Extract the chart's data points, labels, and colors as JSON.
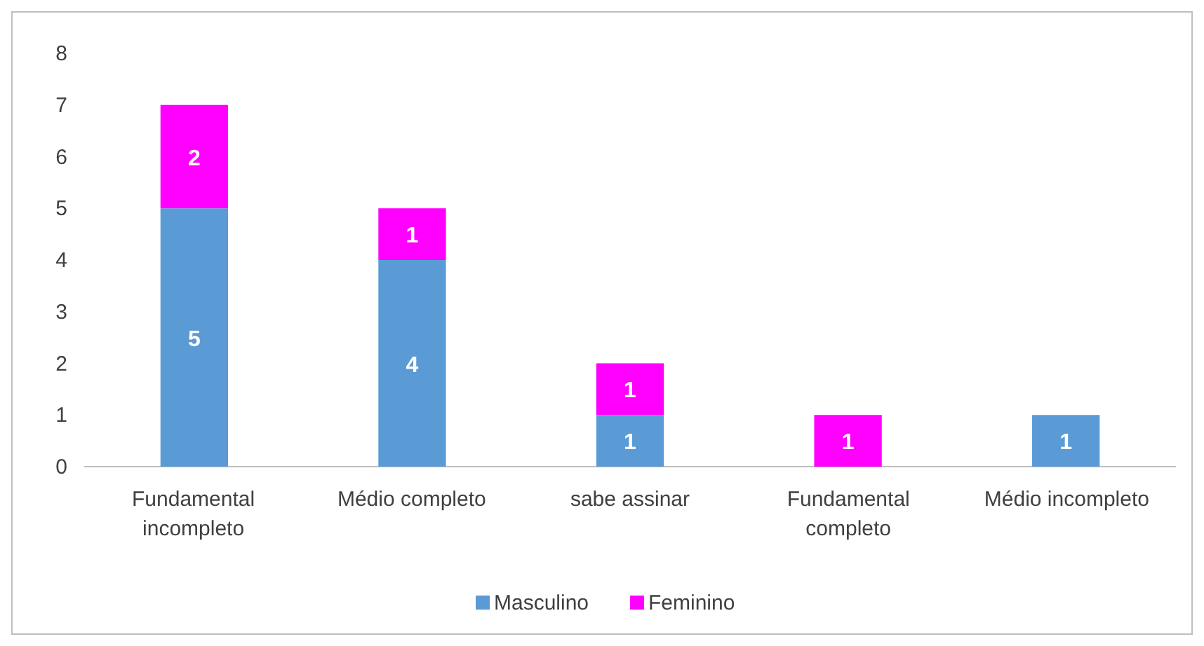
{
  "chart_data": {
    "type": "bar",
    "stacked": true,
    "categories": [
      "Fundamental incompleto",
      "Médio completo",
      "sabe assinar",
      "Fundamental completo",
      "Médio incompleto"
    ],
    "series": [
      {
        "name": "Masculino",
        "color": "#5b9bd5",
        "values": [
          5,
          4,
          1,
          null,
          1
        ]
      },
      {
        "name": "Feminino",
        "color": "#ff00ff",
        "values": [
          2,
          1,
          1,
          1,
          null
        ]
      }
    ],
    "ylim": [
      0,
      8
    ],
    "yticks": [
      0,
      1,
      2,
      3,
      4,
      5,
      6,
      7,
      8
    ],
    "grid": false,
    "legend": "bottom",
    "data_labels": true
  }
}
